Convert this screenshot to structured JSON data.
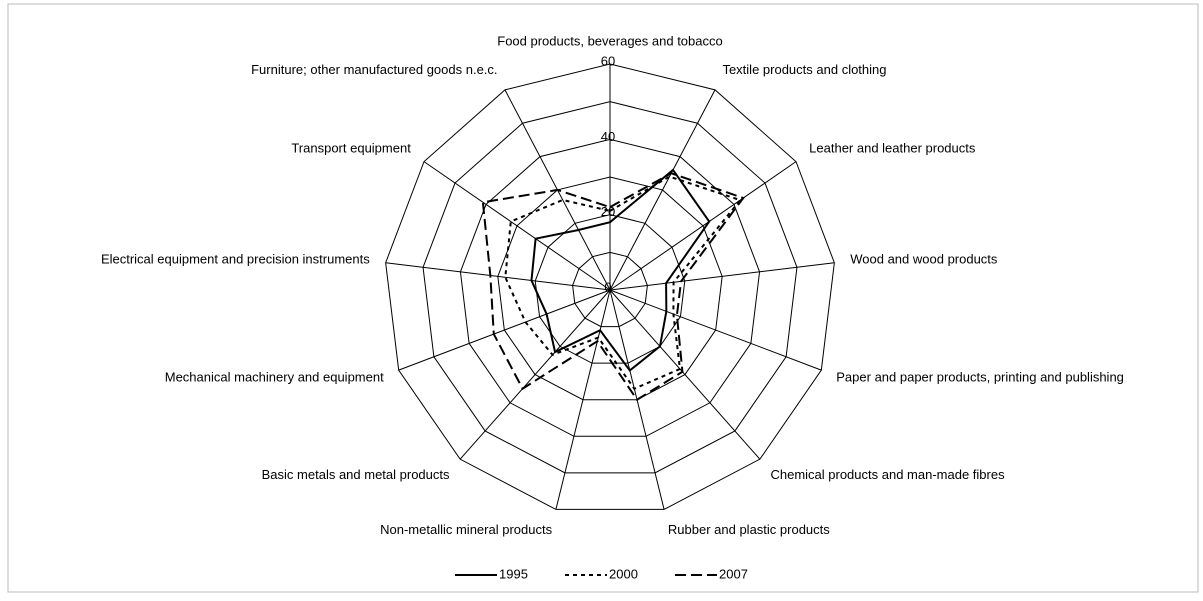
{
  "chart_data": {
    "type": "radar",
    "categories": [
      "Food products, beverages and tobacco",
      "Textile products and clothing",
      "Leather and leather products",
      "Wood and wood products",
      "Paper and paper products, printing and publishing",
      "Chemical products and man-made fibres",
      "Rubber and plastic products",
      "Non-metallic mineral products",
      "Basic metals and metal products",
      "Mechanical machinery and equipment",
      "Electrical equipment and precision instruments",
      "Transport equipment",
      "Furniture; other manufactured goods n.e.c."
    ],
    "series": [
      {
        "name": "1995",
        "color": "#000000",
        "dash": "solid",
        "values": [
          18,
          36,
          32,
          15,
          16,
          20,
          22,
          11,
          22,
          18,
          21,
          24,
          18
        ]
      },
      {
        "name": "2000",
        "color": "#000000",
        "dash": "dotted",
        "values": [
          21,
          34,
          42,
          17,
          18,
          28,
          27,
          13,
          23,
          24,
          28,
          32,
          27
        ]
      },
      {
        "name": "2007",
        "color": "#000000",
        "dash": "dashed",
        "values": [
          22,
          35,
          43,
          19,
          19,
          29,
          30,
          14,
          35,
          33,
          32,
          41,
          30
        ]
      }
    ],
    "ylim": [
      0,
      60
    ],
    "yticks": [
      0,
      20,
      40,
      60
    ],
    "minor_yticks": [
      10,
      30,
      50
    ],
    "grid": true,
    "legend": "bottom"
  }
}
